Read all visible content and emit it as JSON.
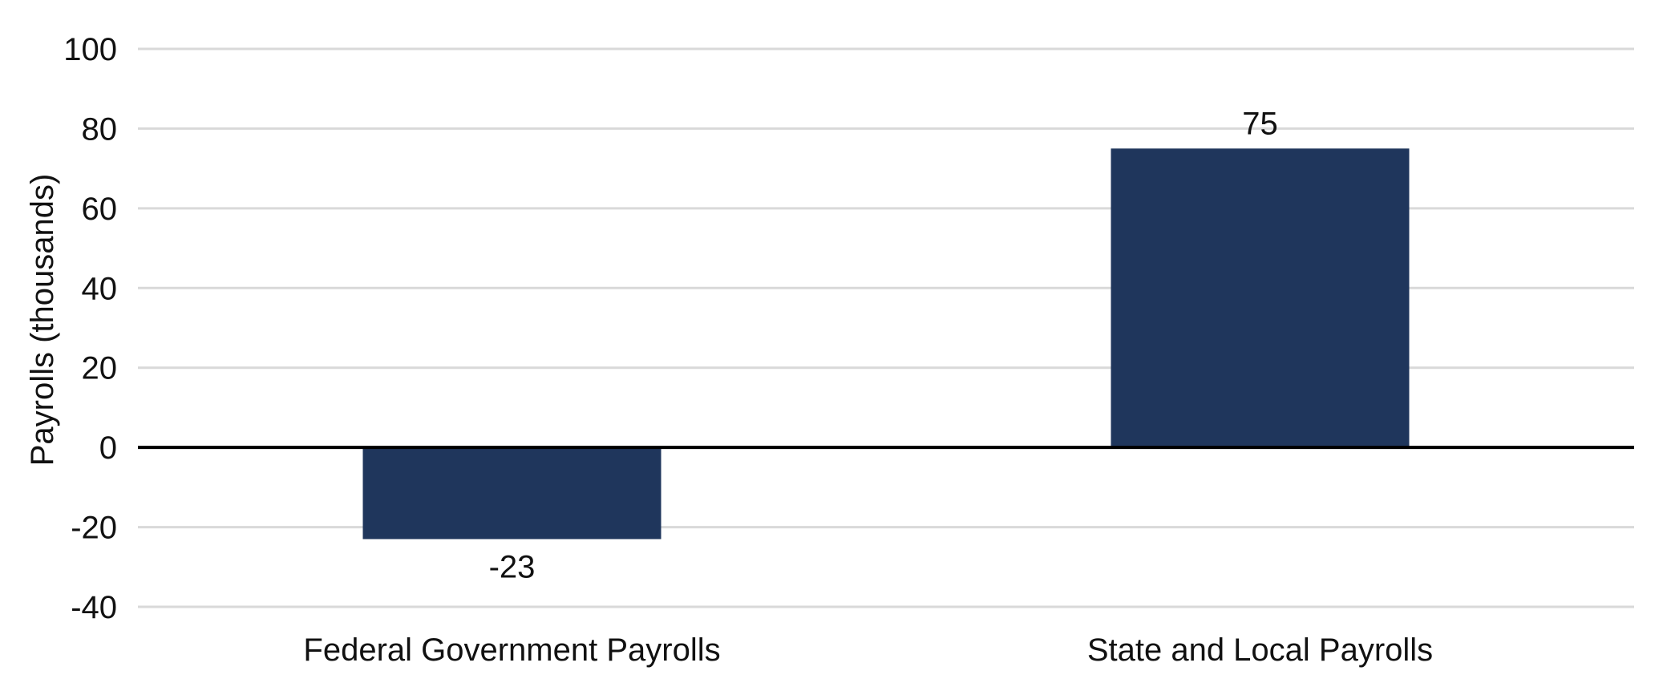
{
  "chart_data": {
    "type": "bar",
    "categories": [
      "Federal Government Payrolls",
      "State and Local Payrolls"
    ],
    "values": [
      -23,
      75
    ],
    "data_labels": [
      "-23",
      "75"
    ],
    "ylabel": "Payrolls (thousands)",
    "xlabel": "",
    "ylim": [
      -40,
      100
    ],
    "yticks": [
      100,
      80,
      60,
      40,
      20,
      0,
      -20,
      -40
    ],
    "ytick_labels": [
      "100",
      "80",
      "60",
      "40",
      "20",
      "0",
      "-20",
      "-40"
    ],
    "grid": true,
    "legend": "none",
    "bar_color": "#1f365c",
    "grid_color": "#d9d9d9",
    "zero_line_color": "#000000"
  }
}
